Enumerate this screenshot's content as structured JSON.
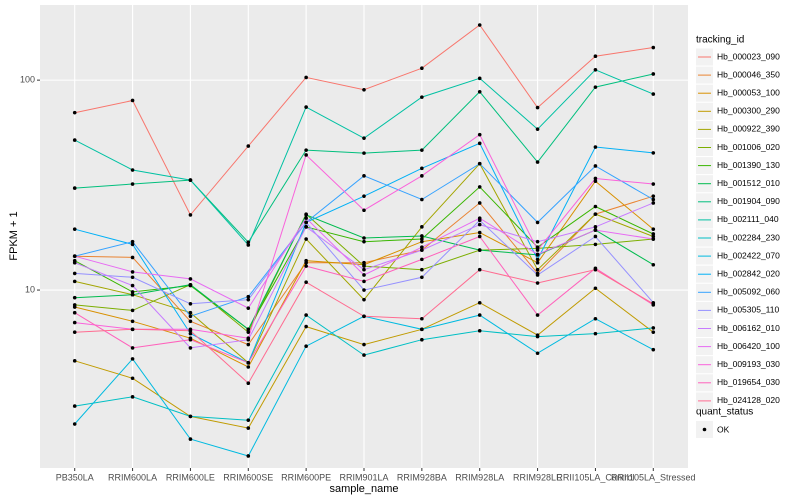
{
  "chart_data": {
    "type": "line",
    "x_label": "sample_name",
    "y_label": "FPKM + 1",
    "legend_title": "tracking_id",
    "point_legend_title": "quant_status",
    "point_legend_label": "OK",
    "log_scale": true,
    "grid": true,
    "ylim": [
      1.42,
      228
    ],
    "yticks": [
      10,
      100
    ],
    "categories": [
      "PB350LA",
      "RRIM600LA",
      "RRIM600LE",
      "RRIM600SE",
      "RRIM600PE",
      "RRIM901LA",
      "RRIM928BA",
      "RRIM928LA",
      "RRIM928LE",
      "RRII105LA_Control",
      "RRII105LA_Stressed"
    ],
    "series": [
      {
        "name": "Hb_000023_090",
        "color": "#F8766D",
        "values": [
          70,
          80,
          22.8,
          48.5,
          103,
          90,
          114,
          183,
          74,
          130,
          143
        ]
      },
      {
        "name": "Hb_000046_350",
        "color": "#EA8331",
        "values": [
          14.5,
          14.3,
          7.1,
          5.5,
          13.5,
          13.5,
          15.5,
          26,
          12,
          23,
          28
        ]
      },
      {
        "name": "Hb_000053_100",
        "color": "#D89000",
        "values": [
          8.3,
          7.1,
          5.9,
          4.3,
          13.8,
          13.2,
          17,
          18.8,
          13.5,
          33,
          19.5
        ]
      },
      {
        "name": "Hb_000300_290",
        "color": "#C09B00",
        "values": [
          4.6,
          3.8,
          2.5,
          2.2,
          6.7,
          5.5,
          6.5,
          8.7,
          6.1,
          10.2,
          6.3
        ]
      },
      {
        "name": "Hb_000922_390",
        "color": "#A3A500",
        "values": [
          11,
          9.5,
          7.8,
          4.5,
          17.5,
          9,
          20,
          40,
          12.5,
          23,
          18
        ]
      },
      {
        "name": "Hb_001006_020",
        "color": "#7CAE00",
        "values": [
          8.5,
          8,
          10.6,
          6.3,
          23,
          13,
          12.5,
          15.5,
          15.8,
          16.5,
          17.5
        ]
      },
      {
        "name": "Hb_001390_130",
        "color": "#39B600",
        "values": [
          13.8,
          9.8,
          10.5,
          6.5,
          20,
          17,
          17.5,
          31,
          16,
          25,
          18.5
        ]
      },
      {
        "name": "Hb_001512_010",
        "color": "#00BB4E",
        "values": [
          9.2,
          9.5,
          10.6,
          6.5,
          22.8,
          17.7,
          18.1,
          15.5,
          14.7,
          19.3,
          13.2
        ]
      },
      {
        "name": "Hb_001904_090",
        "color": "#00BF7D",
        "values": [
          30.6,
          32,
          33.4,
          16.9,
          46.4,
          44.9,
          46.4,
          88,
          40.7,
          92.6,
          107
        ]
      },
      {
        "name": "Hb_002111_040",
        "color": "#00C1A3",
        "values": [
          51.8,
          37.3,
          33.4,
          16.4,
          74.4,
          52.9,
          83,
          102,
          58.4,
          112,
          85.8
        ]
      },
      {
        "name": "Hb_002284_230",
        "color": "#00BFC4",
        "values": [
          2.8,
          3.1,
          2.5,
          2.4,
          7.6,
          4.9,
          5.8,
          6.4,
          6,
          6.2,
          6.6
        ]
      },
      {
        "name": "Hb_002422_070",
        "color": "#00BAE0",
        "values": [
          2.3,
          4.7,
          1.95,
          1.62,
          5.4,
          7.5,
          6.5,
          7.6,
          5,
          7.3,
          5.2
        ]
      },
      {
        "name": "Hb_002842_020",
        "color": "#00B0F6",
        "values": [
          19.5,
          16.5,
          6.2,
          4.5,
          21,
          28,
          38,
          50,
          14,
          48,
          45
        ]
      },
      {
        "name": "Hb_005092_060",
        "color": "#35A2FF",
        "values": [
          14.5,
          17,
          7.5,
          9.3,
          21,
          35,
          27,
          40,
          21,
          39,
          27
        ]
      },
      {
        "name": "Hb_005305_110",
        "color": "#9590FF",
        "values": [
          12,
          11.5,
          8.6,
          9,
          21,
          10,
          11.5,
          21.5,
          11.8,
          18,
          8.7
        ]
      },
      {
        "name": "Hb_006162_010",
        "color": "#C77CFF",
        "values": [
          13.5,
          10.5,
          5.3,
          5.8,
          20,
          12.5,
          15.5,
          20.5,
          17,
          20,
          26
        ]
      },
      {
        "name": "Hb_006420_100",
        "color": "#E76BF3",
        "values": [
          14.5,
          12.2,
          11.3,
          8.2,
          22,
          11.8,
          16,
          22,
          14.8,
          19.3,
          17.5
        ]
      },
      {
        "name": "Hb_009193_030",
        "color": "#FA62DB",
        "values": [
          7,
          6.5,
          6.5,
          5.9,
          44,
          24,
          35,
          55,
          15.5,
          34,
          32
        ]
      },
      {
        "name": "Hb_019654_030",
        "color": "#FF62BC",
        "values": [
          7.8,
          5.3,
          5.8,
          4.5,
          13,
          11,
          14,
          18,
          7.6,
          12.7,
          8.5
        ]
      },
      {
        "name": "Hb_024128_020",
        "color": "#FF6C91",
        "values": [
          6.3,
          6.5,
          6.4,
          3.6,
          10.9,
          7.5,
          7.3,
          12.5,
          10.8,
          12.5,
          8.6
        ]
      }
    ]
  }
}
